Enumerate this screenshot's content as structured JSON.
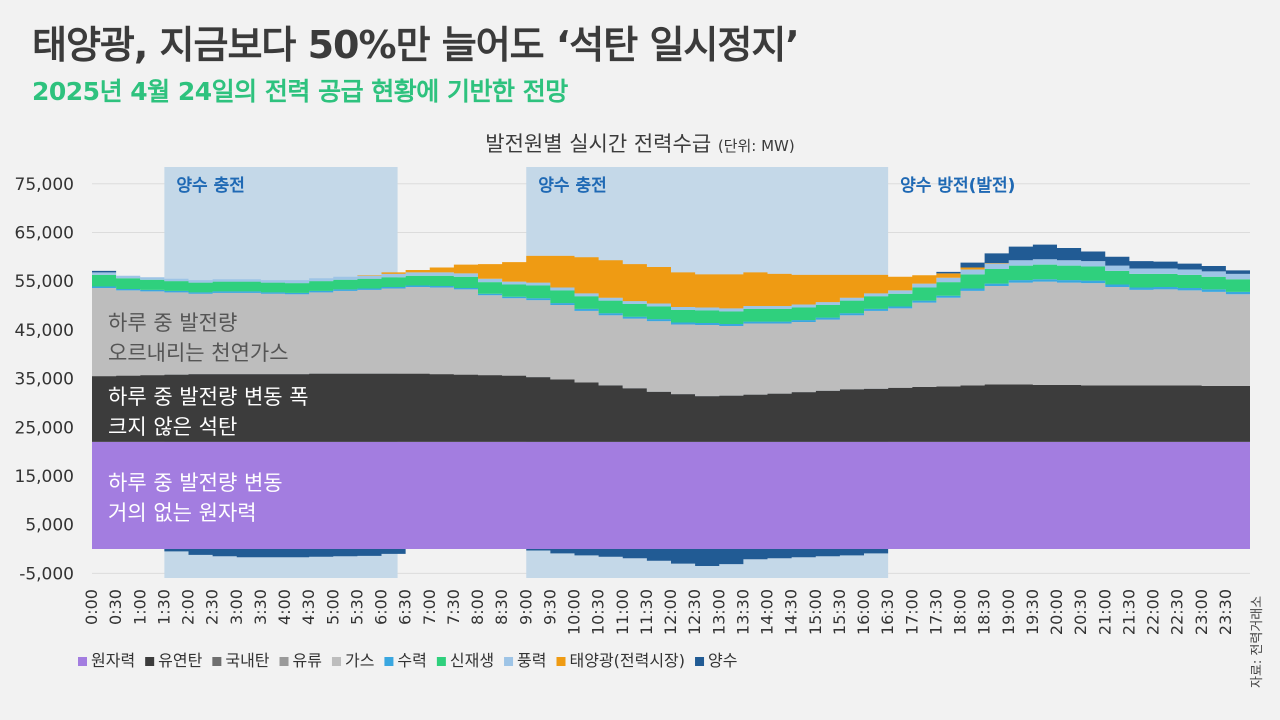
{
  "header": {
    "title": "태양광, 지금보다 50%만 늘어도 ‘석탄 일시정지’",
    "subtitle": "2025년 4월 24일의 전력 공급 현황에 기반한 전망",
    "chart_title": "발전원별 실시간 전력수급",
    "chart_unit": "(단위: MW)",
    "source": "자료: 전력거래소"
  },
  "colors": {
    "원자력": "#a37de0",
    "유연탄": "#3c3c3c",
    "국내탄": "#6f6f6f",
    "유류": "#9a9a9a",
    "가스": "#bdbdbd",
    "수력": "#3aa7e0",
    "신재생": "#2fd07d",
    "풍력": "#9ec4e6",
    "태양광(전력시장)": "#ef9b13",
    "양수": "#215b94",
    "pump_band": "#c4d8e8",
    "pump_label": "#1f69b4"
  },
  "chart_data": {
    "type": "area",
    "stacked": true,
    "title": "발전원별 실시간 전력수급",
    "unit": "MW",
    "ylim": [
      -5000,
      77000
    ],
    "y_ticks": [
      -5000,
      5000,
      15000,
      25000,
      35000,
      45000,
      55000,
      65000,
      75000
    ],
    "y_tick_labels": [
      "-5,000",
      "5,000",
      "15,000",
      "25,000",
      "35,000",
      "45,000",
      "55,000",
      "65,000",
      "75,000"
    ],
    "x": [
      "0:00",
      "0:30",
      "1:00",
      "1:30",
      "2:00",
      "2:30",
      "3:00",
      "3:30",
      "4:00",
      "4:30",
      "5:00",
      "5:30",
      "6:00",
      "6:30",
      "7:00",
      "7:30",
      "8:00",
      "8:30",
      "9:00",
      "9:30",
      "10:00",
      "10:30",
      "11:00",
      "11:30",
      "12:00",
      "12:30",
      "13:00",
      "13:30",
      "14:00",
      "14:30",
      "15:00",
      "15:30",
      "16:00",
      "16:30",
      "17:00",
      "17:30",
      "18:00",
      "18:30",
      "19:00",
      "19:30",
      "20:00",
      "20:30",
      "21:00",
      "21:30",
      "22:00",
      "22:30",
      "23:00",
      "23:30"
    ],
    "series": [
      {
        "name": "원자력",
        "values": [
          22000,
          22000,
          22000,
          22000,
          22000,
          22000,
          22000,
          22000,
          22000,
          22000,
          22000,
          22000,
          22000,
          22000,
          22000,
          22000,
          22000,
          22000,
          22000,
          22000,
          22000,
          22000,
          22000,
          22000,
          22000,
          22000,
          22000,
          22000,
          22000,
          22000,
          22000,
          22000,
          22000,
          22000,
          22000,
          22000,
          22000,
          22000,
          22000,
          22000,
          22000,
          22000,
          22000,
          22000,
          22000,
          22000,
          22000,
          22000
        ]
      },
      {
        "name": "유연탄",
        "values": [
          13500,
          13600,
          13700,
          13800,
          13900,
          13900,
          13900,
          13900,
          13900,
          14000,
          14000,
          14000,
          14000,
          14000,
          13900,
          13800,
          13700,
          13600,
          13300,
          12800,
          12200,
          11600,
          11000,
          10300,
          9800,
          9400,
          9500,
          9700,
          9900,
          10200,
          10500,
          10800,
          10900,
          11100,
          11300,
          11400,
          11600,
          11800,
          11800,
          11700,
          11700,
          11600,
          11600,
          11600,
          11600,
          11600,
          11500,
          11500
        ]
      },
      {
        "name": "국내탄",
        "values": [
          0,
          0,
          0,
          0,
          0,
          0,
          0,
          0,
          0,
          0,
          0,
          0,
          0,
          0,
          0,
          0,
          0,
          0,
          0,
          0,
          0,
          0,
          0,
          0,
          0,
          0,
          0,
          0,
          0,
          0,
          0,
          0,
          0,
          0,
          0,
          0,
          0,
          0,
          0,
          0,
          0,
          0,
          0,
          0,
          0,
          0,
          0,
          0
        ]
      },
      {
        "name": "유류",
        "values": [
          0,
          0,
          0,
          0,
          0,
          0,
          0,
          0,
          0,
          0,
          0,
          0,
          0,
          0,
          0,
          0,
          0,
          0,
          0,
          0,
          0,
          0,
          0,
          0,
          0,
          0,
          0,
          0,
          0,
          0,
          0,
          0,
          0,
          0,
          0,
          0,
          0,
          0,
          0,
          0,
          0,
          0,
          0,
          0,
          0,
          0,
          0,
          0
        ]
      },
      {
        "name": "가스",
        "values": [
          18100,
          17500,
          17200,
          16900,
          16500,
          16700,
          16700,
          16500,
          16400,
          16700,
          17000,
          17200,
          17500,
          17800,
          17800,
          17500,
          16400,
          15900,
          15800,
          15300,
          14700,
          14400,
          14300,
          14500,
          14300,
          14600,
          14300,
          14600,
          14400,
          14400,
          14600,
          15200,
          16000,
          16300,
          17300,
          18200,
          19400,
          20200,
          20900,
          21200,
          21000,
          21000,
          20200,
          19600,
          19700,
          19500,
          19300,
          18800
        ]
      },
      {
        "name": "수력",
        "values": [
          300,
          300,
          300,
          300,
          300,
          300,
          300,
          300,
          300,
          300,
          300,
          300,
          300,
          300,
          300,
          300,
          300,
          300,
          400,
          400,
          400,
          400,
          400,
          400,
          400,
          400,
          400,
          400,
          400,
          400,
          400,
          400,
          400,
          400,
          400,
          400,
          500,
          500,
          500,
          500,
          500,
          500,
          500,
          500,
          500,
          500,
          500,
          500
        ]
      },
      {
        "name": "신재생",
        "values": [
          2400,
          2200,
          2100,
          2000,
          2000,
          2000,
          2000,
          2000,
          2000,
          2000,
          2000,
          2000,
          2000,
          2000,
          2100,
          2300,
          2400,
          2500,
          2600,
          2600,
          2600,
          2600,
          2600,
          2600,
          2600,
          2600,
          2600,
          2600,
          2600,
          2600,
          2600,
          2600,
          2600,
          2600,
          2700,
          2800,
          2900,
          3000,
          3000,
          3000,
          3000,
          2900,
          2800,
          2800,
          2700,
          2700,
          2600,
          2600
        ]
      },
      {
        "name": "풍력",
        "values": [
          500,
          500,
          500,
          500,
          500,
          500,
          500,
          500,
          600,
          600,
          600,
          600,
          700,
          700,
          700,
          700,
          700,
          600,
          600,
          600,
          600,
          600,
          600,
          600,
          600,
          600,
          600,
          600,
          600,
          600,
          600,
          600,
          600,
          700,
          800,
          900,
          1000,
          1100,
          1100,
          1100,
          1100,
          1100,
          1100,
          1100,
          1100,
          1100,
          1100,
          1100
        ]
      },
      {
        "name": "태양광(전력시장)",
        "values": [
          0,
          0,
          0,
          0,
          0,
          0,
          0,
          0,
          0,
          0,
          0,
          100,
          300,
          500,
          1000,
          1800,
          3000,
          4000,
          5500,
          6500,
          7400,
          7700,
          7600,
          7500,
          7100,
          6800,
          7000,
          6900,
          6600,
          6100,
          5600,
          4700,
          3800,
          2800,
          1700,
          900,
          400,
          100,
          0,
          0,
          0,
          0,
          0,
          0,
          0,
          0,
          0,
          0
        ]
      },
      {
        "name": "양수",
        "values": [
          300,
          0,
          0,
          -500,
          -1200,
          -1500,
          -1700,
          -1700,
          -1700,
          -1600,
          -1500,
          -1400,
          -1000,
          0,
          0,
          0,
          0,
          0,
          -300,
          -900,
          -1300,
          -1600,
          -1900,
          -2400,
          -3000,
          -3500,
          -3100,
          -2100,
          -1900,
          -1700,
          -1500,
          -1300,
          -900,
          0,
          0,
          300,
          1000,
          2000,
          2800,
          3000,
          2500,
          2000,
          1800,
          1500,
          1400,
          1200,
          1100,
          700
        ]
      }
    ],
    "shaded_periods": [
      {
        "label": "양수 충전",
        "start": "1:30",
        "end": "6:20"
      },
      {
        "label": "양수 충전",
        "start": "9:00",
        "end": "16:30"
      },
      {
        "label": "양수 방전(발전)",
        "start": "16:30",
        "end": ""
      }
    ],
    "annotations": [
      {
        "series": "가스",
        "lines": [
          "하루 중 발전량",
          "오르내리는 천연가스"
        ]
      },
      {
        "series": "유연탄",
        "lines": [
          "하루 중 발전량 변동 폭",
          "크지 않은 석탄"
        ]
      },
      {
        "series": "원자력",
        "lines": [
          "하루 중 발전량 변동",
          "거의 없는 원자력"
        ]
      }
    ],
    "legend": [
      "원자력",
      "유연탄",
      "국내탄",
      "유류",
      "가스",
      "수력",
      "신재생",
      "풍력",
      "태양광(전력시장)",
      "양수"
    ],
    "legend_position": "bottom"
  }
}
